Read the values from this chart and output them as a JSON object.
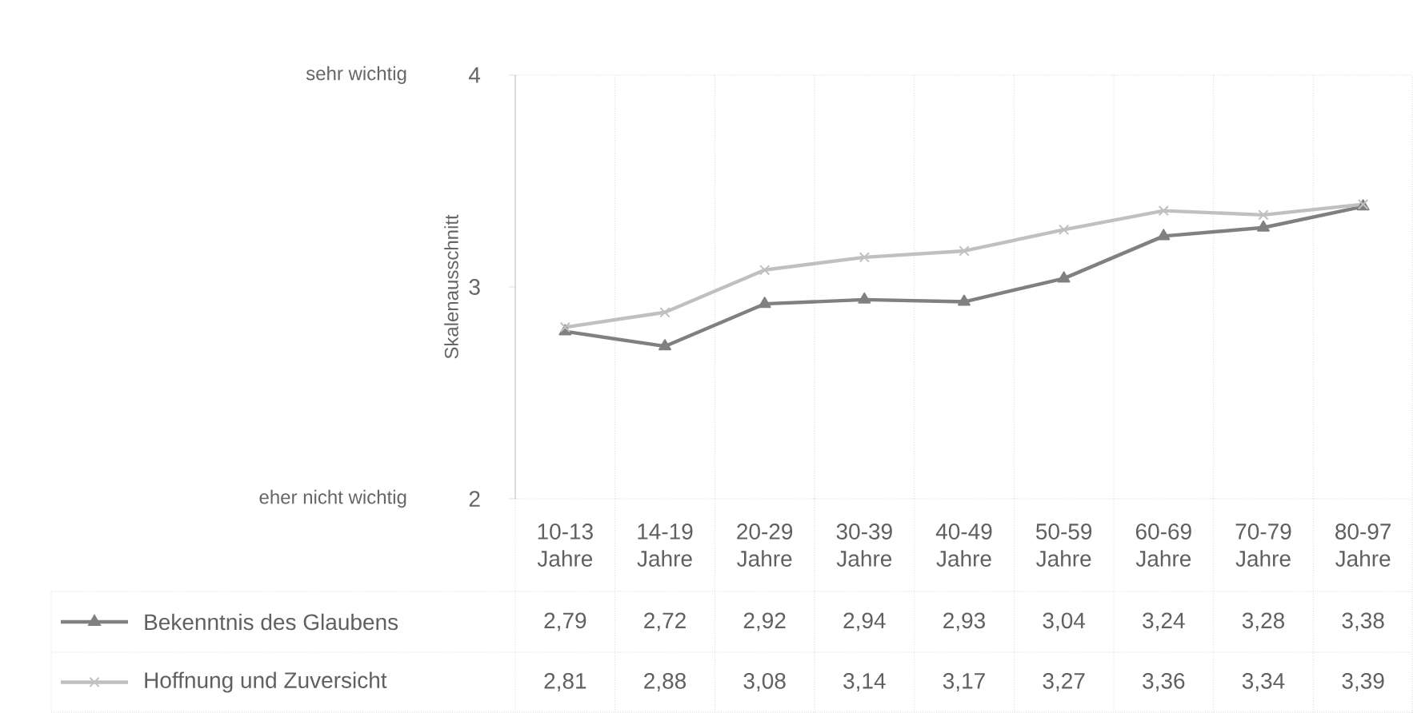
{
  "chart_data": {
    "type": "line",
    "ylabel": "Skalenausschnitt",
    "categories": [
      "10-13 Jahre",
      "14-19 Jahre",
      "20-29 Jahre",
      "30-39 Jahre",
      "40-49 Jahre",
      "50-59 Jahre",
      "60-69 Jahre",
      "70-79 Jahre",
      "80-97 Jahre"
    ],
    "series": [
      {
        "name": "Bekenntnis des Glaubens",
        "color": "#808080",
        "marker": "triangle",
        "values": [
          2.79,
          2.72,
          2.92,
          2.94,
          2.93,
          3.04,
          3.24,
          3.28,
          3.38
        ],
        "value_labels": [
          "2,79",
          "2,72",
          "2,92",
          "2,94",
          "2,93",
          "3,04",
          "3,24",
          "3,28",
          "3,38"
        ]
      },
      {
        "name": "Hoffnung und Zuversicht",
        "color": "#c0c0c0",
        "marker": "cross",
        "values": [
          2.81,
          2.88,
          3.08,
          3.14,
          3.17,
          3.27,
          3.36,
          3.34,
          3.39
        ],
        "value_labels": [
          "2,81",
          "2,88",
          "3,08",
          "3,14",
          "3,17",
          "3,27",
          "3,36",
          "3,34",
          "3,39"
        ]
      }
    ],
    "ylim": [
      2,
      4
    ],
    "yticks": [
      2,
      3,
      4
    ],
    "annotations": [
      "sehr wichtig",
      "eher nicht wichtig"
    ],
    "legend": "bottom",
    "line_style": "solid"
  }
}
